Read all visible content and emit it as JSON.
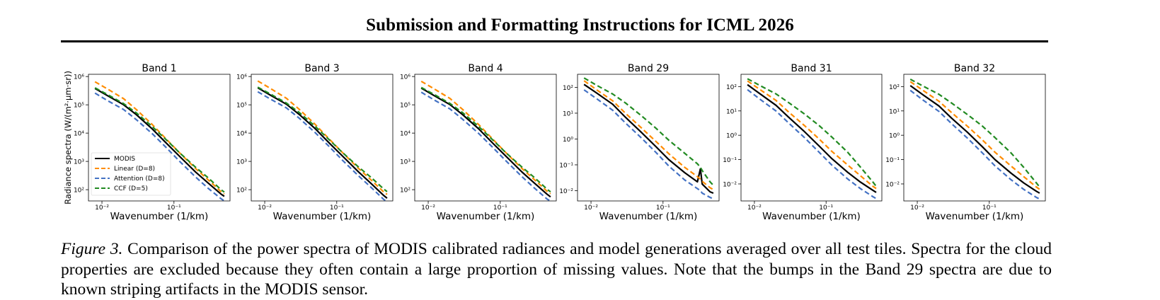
{
  "header": {
    "title": "Submission and Formatting Instructions for ICML 2026"
  },
  "caption": {
    "label": "Figure 3.",
    "text": "Comparison of the power spectra of MODIS calibrated radiances and model generations averaged over all test tiles. Spectra for the cloud properties are excluded because they often contain a large proportion of missing values. Note that the bumps in the Band 29 spectra are due to known striping artifacts in the MODIS sensor."
  },
  "colors": {
    "MODIS": "#000000",
    "Linear": "#ff8c00",
    "Attention": "#4472c4",
    "CCF": "#228b22"
  },
  "chart_data": [
    {
      "type": "line",
      "title": "Band 1",
      "xlabel": "Wavenumber (1/km)",
      "ylabel": "Radiance spectra (W/(m²·μm·sr))",
      "xscale": "log",
      "yscale": "log",
      "xlim": [
        0.0065,
        0.6
      ],
      "ylim": [
        40,
        1200000
      ],
      "xticks": [
        0.01,
        0.1
      ],
      "xtick_labels": [
        "10⁻²",
        "10⁻¹"
      ],
      "yticks": [
        100,
        1000,
        10000,
        100000,
        1000000
      ],
      "ytick_labels": [
        "10²",
        "10³",
        "10⁴",
        "10⁵",
        "10⁶"
      ],
      "legend": "lower-left",
      "x": [
        0.008,
        0.012,
        0.02,
        0.03,
        0.05,
        0.08,
        0.12,
        0.2,
        0.3,
        0.45,
        0.5
      ],
      "series": [
        {
          "name": "MODIS",
          "style": "solid",
          "values": [
            380000,
            210000,
            100000,
            45000,
            14000,
            4200,
            1500,
            420,
            170,
            70,
            58
          ]
        },
        {
          "name": "Linear (D=8)",
          "style": "dashed",
          "values": [
            650000,
            360000,
            165000,
            68000,
            20000,
            5800,
            2000,
            560,
            220,
            85,
            70
          ]
        },
        {
          "name": "Attention (D=8)",
          "style": "dashed",
          "values": [
            260000,
            140000,
            68000,
            30000,
            9500,
            2900,
            1000,
            280,
            110,
            48,
            40
          ]
        },
        {
          "name": "CCF (D=5)",
          "style": "dashed",
          "values": [
            400000,
            230000,
            110000,
            52000,
            17000,
            5500,
            2000,
            620,
            260,
            100,
            82
          ]
        }
      ]
    },
    {
      "type": "line",
      "title": "Band 3",
      "xlabel": "Wavenumber (1/km)",
      "ylabel": "",
      "xscale": "log",
      "yscale": "log",
      "xlim": [
        0.0065,
        0.6
      ],
      "ylim": [
        40,
        1200000
      ],
      "xticks": [
        0.01,
        0.1
      ],
      "xtick_labels": [
        "10⁻²",
        "10⁻¹"
      ],
      "yticks": [
        100,
        1000,
        10000,
        100000,
        1000000
      ],
      "ytick_labels": [
        "10²",
        "10³",
        "10⁴",
        "10⁵",
        "10⁶"
      ],
      "x": [
        0.008,
        0.012,
        0.02,
        0.03,
        0.05,
        0.08,
        0.12,
        0.2,
        0.3,
        0.45,
        0.5
      ],
      "series": [
        {
          "name": "MODIS",
          "style": "solid",
          "values": [
            400000,
            220000,
            105000,
            46000,
            14500,
            4300,
            1550,
            430,
            165,
            62,
            50
          ]
        },
        {
          "name": "Linear (D=8)",
          "style": "dashed",
          "values": [
            700000,
            380000,
            170000,
            70000,
            20500,
            5900,
            2050,
            570,
            220,
            82,
            68
          ]
        },
        {
          "name": "Attention (D=8)",
          "style": "dashed",
          "values": [
            290000,
            160000,
            78000,
            34000,
            10500,
            3200,
            1100,
            310,
            120,
            45,
            38
          ]
        },
        {
          "name": "CCF (D=5)",
          "style": "dashed",
          "values": [
            420000,
            240000,
            115000,
            54000,
            17500,
            5600,
            2050,
            640,
            270,
            105,
            85
          ]
        }
      ]
    },
    {
      "type": "line",
      "title": "Band 4",
      "xlabel": "Wavenumber (1/km)",
      "ylabel": "",
      "xscale": "log",
      "yscale": "log",
      "xlim": [
        0.0065,
        0.6
      ],
      "ylim": [
        40,
        1200000
      ],
      "xticks": [
        0.01,
        0.1
      ],
      "xtick_labels": [
        "10⁻²",
        "10⁻¹"
      ],
      "yticks": [
        100,
        1000,
        10000,
        100000,
        1000000
      ],
      "ytick_labels": [
        "10²",
        "10³",
        "10⁴",
        "10⁵",
        "10⁶"
      ],
      "x": [
        0.008,
        0.012,
        0.02,
        0.03,
        0.05,
        0.08,
        0.12,
        0.2,
        0.3,
        0.45,
        0.5
      ],
      "series": [
        {
          "name": "MODIS",
          "style": "solid",
          "values": [
            390000,
            215000,
            102000,
            45000,
            14200,
            4250,
            1520,
            425,
            168,
            68,
            56
          ]
        },
        {
          "name": "Linear (D=8)",
          "style": "dashed",
          "values": [
            680000,
            370000,
            168000,
            69000,
            20200,
            5850,
            2020,
            565,
            222,
            86,
            72
          ]
        },
        {
          "name": "Attention (D=8)",
          "style": "dashed",
          "values": [
            280000,
            150000,
            72000,
            31000,
            9800,
            3000,
            1040,
            290,
            112,
            46,
            40
          ]
        },
        {
          "name": "CCF (D=5)",
          "style": "dashed",
          "values": [
            410000,
            235000,
            112000,
            53000,
            17200,
            5550,
            2020,
            630,
            265,
            102,
            84
          ]
        }
      ]
    },
    {
      "type": "line",
      "title": "Band 29",
      "xlabel": "Wavenumber (1/km)",
      "ylabel": "",
      "xscale": "log",
      "yscale": "log",
      "xlim": [
        0.0065,
        0.6
      ],
      "ylim": [
        0.004,
        320
      ],
      "xticks": [
        0.01,
        0.1
      ],
      "xtick_labels": [
        "10⁻²",
        "10⁻¹"
      ],
      "yticks": [
        0.01,
        0.1,
        1,
        10,
        100
      ],
      "ytick_labels": [
        "10⁻²",
        "10⁻¹",
        "10⁰",
        "10¹",
        "10²"
      ],
      "x": [
        0.008,
        0.012,
        0.02,
        0.03,
        0.05,
        0.08,
        0.12,
        0.2,
        0.3,
        0.33,
        0.35,
        0.45,
        0.5
      ],
      "series": [
        {
          "name": "MODIS",
          "style": "solid",
          "values": [
            130,
            60,
            22,
            7,
            1.8,
            0.5,
            0.16,
            0.05,
            0.022,
            0.07,
            0.018,
            0.009,
            0.008
          ]
        },
        {
          "name": "Linear (D=8)",
          "style": "dashed",
          "values": [
            180,
            80,
            30,
            10,
            2.7,
            0.8,
            0.27,
            0.08,
            0.035,
            0.028,
            0.023,
            0.013,
            0.011
          ]
        },
        {
          "name": "Attention (D=8)",
          "style": "dashed",
          "values": [
            80,
            36,
            13,
            4.2,
            1.1,
            0.3,
            0.09,
            0.026,
            0.012,
            0.01,
            0.008,
            0.0055,
            0.0048
          ]
        },
        {
          "name": "CCF (D=5)",
          "style": "dashed",
          "values": [
            230,
            120,
            55,
            25,
            8,
            2.6,
            0.9,
            0.28,
            0.11,
            0.08,
            0.06,
            0.022,
            0.016
          ]
        }
      ]
    },
    {
      "type": "line",
      "title": "Band 31",
      "xlabel": "Wavenumber (1/km)",
      "ylabel": "",
      "xscale": "log",
      "yscale": "log",
      "xlim": [
        0.0065,
        0.6
      ],
      "ylim": [
        0.002,
        320
      ],
      "xticks": [
        0.01,
        0.1
      ],
      "xtick_labels": [
        "10⁻²",
        "10⁻¹"
      ],
      "yticks": [
        0.01,
        0.1,
        1,
        10,
        100
      ],
      "ytick_labels": [
        "10⁻²",
        "10⁻¹",
        "10⁰",
        "10¹",
        "10²"
      ],
      "x": [
        0.008,
        0.012,
        0.02,
        0.03,
        0.05,
        0.08,
        0.12,
        0.2,
        0.3,
        0.45,
        0.5
      ],
      "series": [
        {
          "name": "MODIS",
          "style": "solid",
          "values": [
            120,
            50,
            17,
            5.5,
            1.4,
            0.36,
            0.11,
            0.03,
            0.012,
            0.0055,
            0.0045
          ]
        },
        {
          "name": "Linear (D=8)",
          "style": "dashed",
          "values": [
            170,
            75,
            27,
            9,
            2.5,
            0.7,
            0.22,
            0.06,
            0.022,
            0.008,
            0.0065
          ]
        },
        {
          "name": "Attention (D=8)",
          "style": "dashed",
          "values": [
            75,
            30,
            10,
            3.2,
            0.8,
            0.2,
            0.06,
            0.016,
            0.0065,
            0.003,
            0.0025
          ]
        },
        {
          "name": "CCF (D=5)",
          "style": "dashed",
          "values": [
            210,
            110,
            50,
            22,
            7.5,
            2.5,
            0.85,
            0.2,
            0.05,
            0.012,
            0.008
          ]
        }
      ]
    },
    {
      "type": "line",
      "title": "Band 32",
      "xlabel": "Wavenumber (1/km)",
      "ylabel": "",
      "xscale": "log",
      "yscale": "log",
      "xlim": [
        0.0065,
        0.6
      ],
      "ylim": [
        0.002,
        320
      ],
      "xticks": [
        0.01,
        0.1
      ],
      "xtick_labels": [
        "10⁻²",
        "10⁻¹"
      ],
      "yticks": [
        0.01,
        0.1,
        1,
        10,
        100
      ],
      "ytick_labels": [
        "10⁻²",
        "10⁻¹",
        "10⁰",
        "10¹",
        "10²"
      ],
      "x": [
        0.008,
        0.012,
        0.02,
        0.03,
        0.05,
        0.08,
        0.12,
        0.2,
        0.3,
        0.45,
        0.5
      ],
      "series": [
        {
          "name": "MODIS",
          "style": "solid",
          "values": [
            110,
            46,
            16,
            5,
            1.3,
            0.34,
            0.1,
            0.028,
            0.011,
            0.005,
            0.0042
          ]
        },
        {
          "name": "Linear (D=8)",
          "style": "dashed",
          "values": [
            160,
            70,
            25,
            8.5,
            2.3,
            0.65,
            0.2,
            0.055,
            0.02,
            0.0075,
            0.006
          ]
        },
        {
          "name": "Attention (D=8)",
          "style": "dashed",
          "values": [
            70,
            28,
            9.5,
            3,
            0.75,
            0.19,
            0.055,
            0.015,
            0.006,
            0.0028,
            0.0024
          ]
        },
        {
          "name": "CCF (D=5)",
          "style": "dashed",
          "values": [
            200,
            105,
            48,
            21,
            7,
            2.4,
            0.8,
            0.19,
            0.048,
            0.011,
            0.0075
          ]
        }
      ]
    }
  ]
}
